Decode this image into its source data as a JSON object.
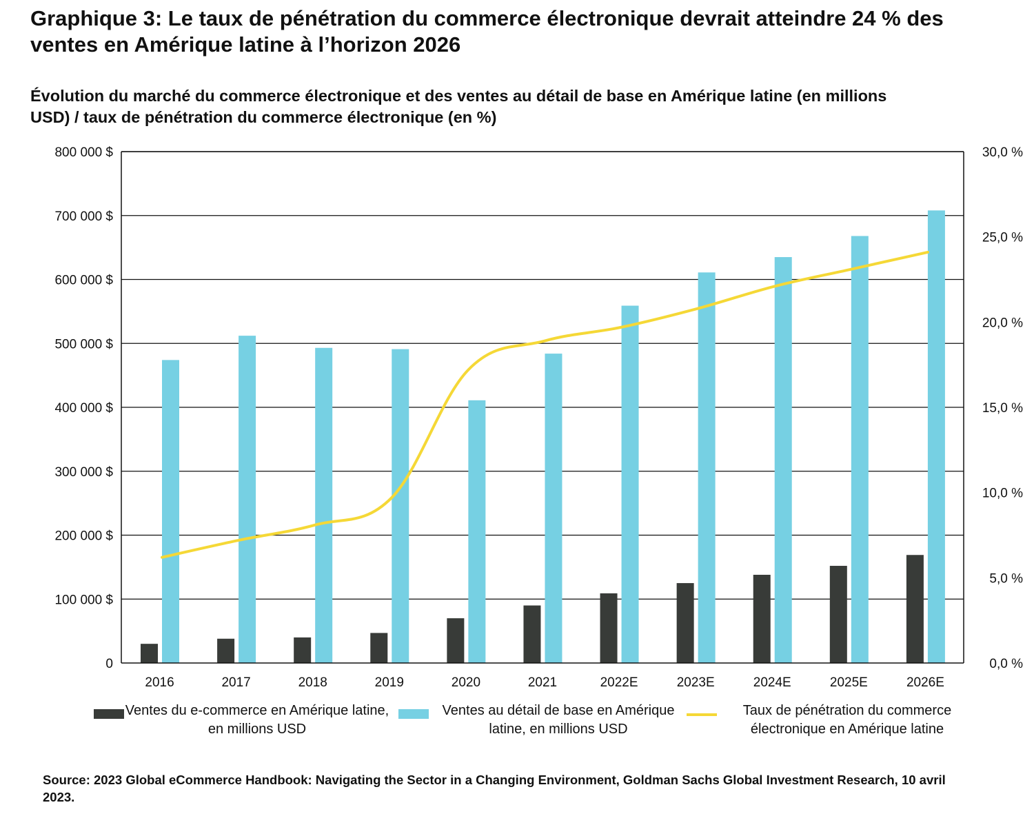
{
  "title": "Graphique 3: Le taux de pénétration du commerce électronique devrait atteindre 24 % des ventes en Amérique latine à l’horizon 2026",
  "subtitle": "Évolution du marché du commerce électronique et des ventes au détail de base en Amérique latine (en millions USD) / taux de pénétration du commerce électronique (en %)",
  "source": "Source: 2023 Global eCommerce Handbook: Navigating the Sector in a Changing Environment, Goldman Sachs Global Investment Research, 10 avril 2023.",
  "colors": {
    "ecommerce": "#383b38",
    "retail": "#76d0e3",
    "rate": "#f5d836",
    "grid": "#111111"
  },
  "chart_data": {
    "type": "bar",
    "categories": [
      "2016",
      "2017",
      "2018",
      "2019",
      "2020",
      "2021",
      "2022E",
      "2023E",
      "2024E",
      "2025E",
      "2026E"
    ],
    "series": [
      {
        "name": "Ventes du e-commerce en Amérique latine, en millions USD",
        "axis": "left",
        "type": "bar",
        "values": [
          30000,
          38000,
          40000,
          47000,
          70000,
          90000,
          109000,
          125000,
          138000,
          152000,
          169000
        ]
      },
      {
        "name": "Ventes au détail de base en Amérique latine, en millions USD",
        "axis": "left",
        "type": "bar",
        "values": [
          474000,
          512000,
          493000,
          491000,
          411000,
          484000,
          559000,
          611000,
          635000,
          668000,
          708000
        ]
      },
      {
        "name": "Taux de pénétration du commerce électronique en Amérique latine",
        "axis": "right",
        "type": "line",
        "values": [
          6.2,
          7.2,
          8.1,
          9.7,
          17.2,
          18.9,
          19.7,
          20.8,
          22.1,
          23.1,
          24.1
        ]
      }
    ],
    "y_left": {
      "min": 0,
      "max": 800000,
      "step": 100000,
      "tick_labels": [
        "0",
        "100 000 $",
        "200 000 $",
        "300 000 $",
        "400 000 $",
        "500 000 $",
        "600 000 $",
        "700 000 $",
        "800 000 $"
      ]
    },
    "y_right": {
      "min": 0,
      "max": 30,
      "step": 5,
      "tick_labels": [
        "0,0 %",
        "5,0 %",
        "10,0 %",
        "15,0 %",
        "20,0 %",
        "25,0 %",
        "30,0 %"
      ]
    },
    "grid": true,
    "legend_position": "bottom"
  }
}
